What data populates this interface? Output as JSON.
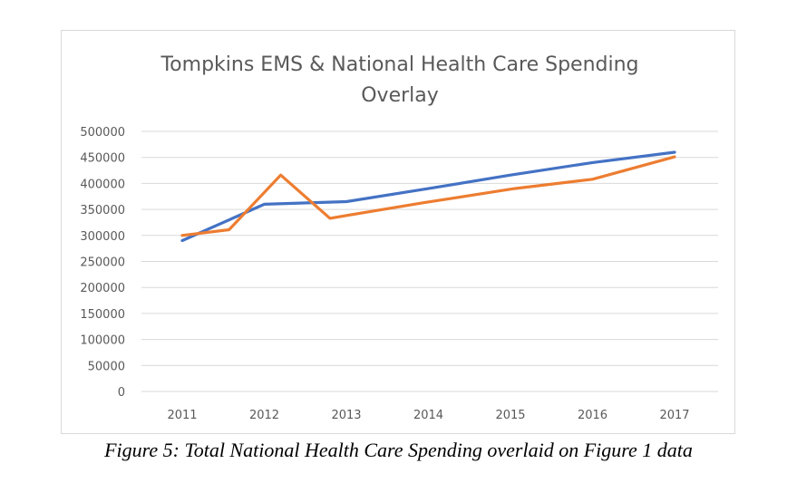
{
  "chart_data": {
    "type": "line",
    "title_lines": [
      "Tompkins EMS & National Health Care Spending",
      "Overlay"
    ],
    "xlabel": "",
    "ylabel": "",
    "x_ticks": [
      "2011",
      "2012",
      "2013",
      "2014",
      "2015",
      "2016",
      "2017"
    ],
    "y_ticks": [
      "500000",
      "450000",
      "400000",
      "350000",
      "300000",
      "250000",
      "200000",
      "150000",
      "100000",
      "50000",
      "0"
    ],
    "ylim": [
      0,
      500000
    ],
    "grid": true,
    "legend": "none",
    "series": [
      {
        "color": "#4472c4",
        "points": [
          {
            "x": 2011.0,
            "y": 290000
          },
          {
            "x": 2012.0,
            "y": 360000
          },
          {
            "x": 2013.0,
            "y": 365000
          },
          {
            "x": 2014.0,
            "y": 390000
          },
          {
            "x": 2015.0,
            "y": 416000
          },
          {
            "x": 2016.0,
            "y": 440000
          },
          {
            "x": 2017.0,
            "y": 460000
          }
        ]
      },
      {
        "color": "#ed7d31",
        "points": [
          {
            "x": 2011.0,
            "y": 300000
          },
          {
            "x": 2011.57,
            "y": 311000
          },
          {
            "x": 2012.2,
            "y": 416000
          },
          {
            "x": 2012.8,
            "y": 333000
          },
          {
            "x": 2013.95,
            "y": 363000
          },
          {
            "x": 2015.05,
            "y": 390000
          },
          {
            "x": 2016.0,
            "y": 408000
          },
          {
            "x": 2017.0,
            "y": 451000
          }
        ]
      }
    ]
  },
  "caption": "Figure 5: Total National Health Care Spending overlaid on Figure 1 data"
}
